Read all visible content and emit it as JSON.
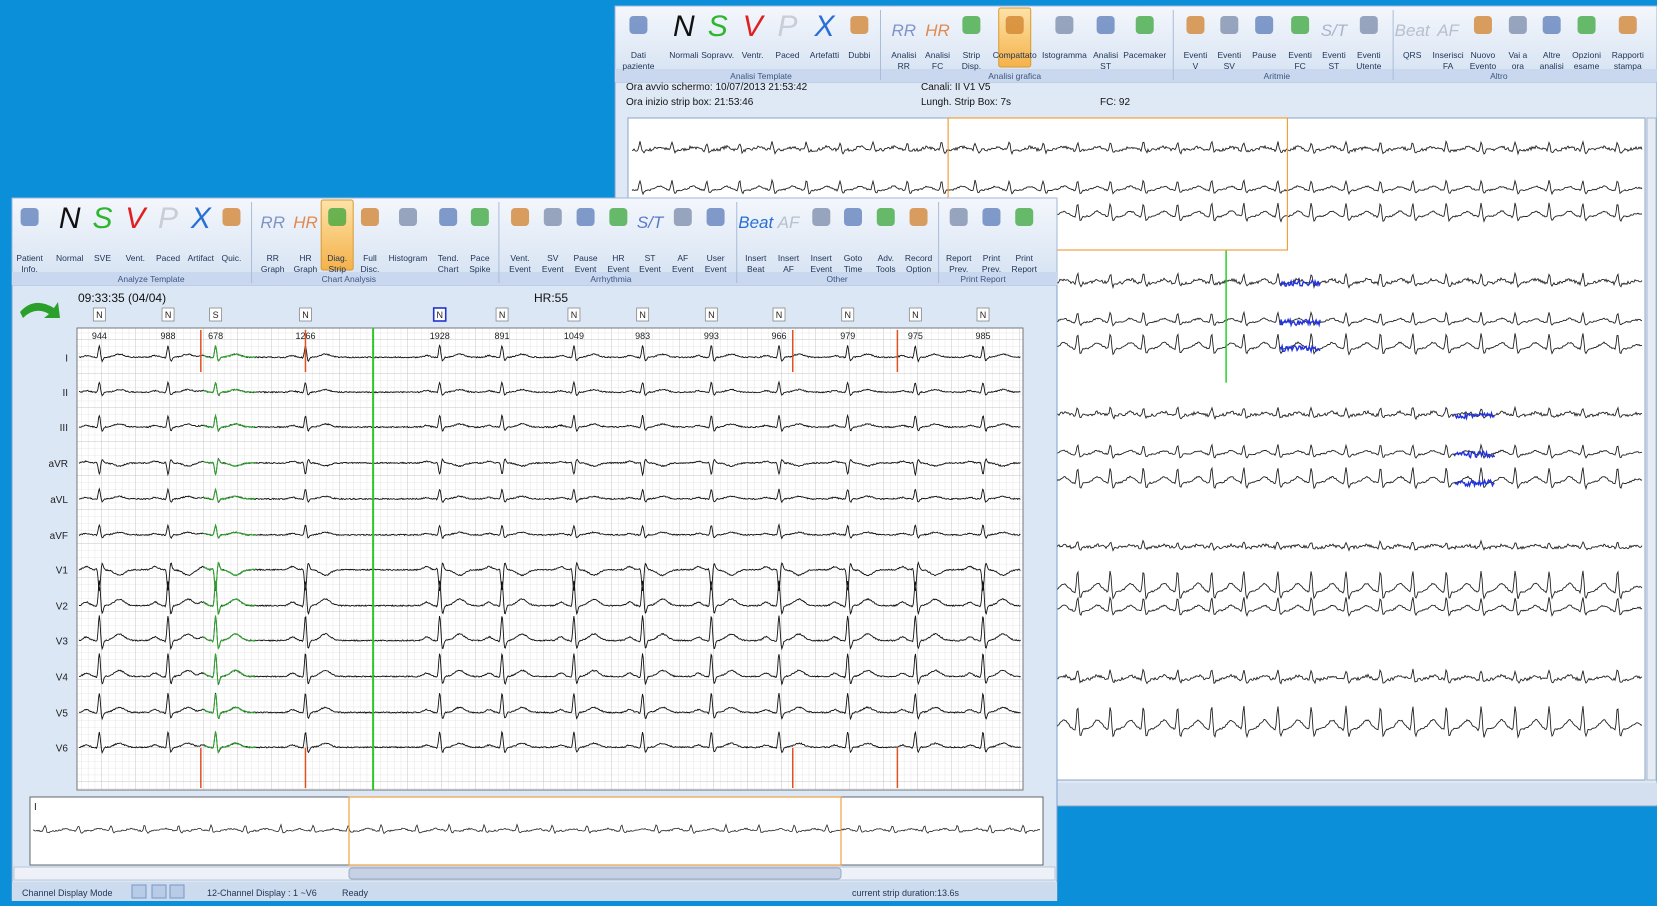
{
  "back_window": {
    "toolbar": {
      "buttons": [
        {
          "label": [
            "Dati",
            "paziente"
          ]
        },
        {
          "label": [
            "Normali"
          ],
          "icon": "N",
          "color": "#111111"
        },
        {
          "label": [
            "Sopravv."
          ],
          "icon": "S",
          "color": "#2fb52f"
        },
        {
          "label": [
            "Ventr."
          ],
          "icon": "V",
          "color": "#e02020"
        },
        {
          "label": [
            "Paced"
          ],
          "icon": "P",
          "color": "#c8cdd8"
        },
        {
          "label": [
            "Artefatti"
          ],
          "icon": "X",
          "color": "#2a6fd6"
        },
        {
          "label": [
            "Dubbi"
          ]
        },
        {
          "label": [
            "Analisi",
            "RR"
          ],
          "icon": "RR",
          "color": "#7f93c8"
        },
        {
          "label": [
            "Analisi",
            "FC"
          ],
          "icon": "HR",
          "color": "#e08a50"
        },
        {
          "label": [
            "Strip",
            "Disp."
          ]
        },
        {
          "label": [
            "Compattato"
          ],
          "active": true
        },
        {
          "label": [
            "Istogramma"
          ]
        },
        {
          "label": [
            "Analisi",
            "ST"
          ]
        },
        {
          "label": [
            "Pacemaker"
          ]
        },
        {
          "label": [
            "Eventi",
            "V"
          ]
        },
        {
          "label": [
            "Eventi",
            "SV"
          ]
        },
        {
          "label": [
            "Pause"
          ]
        },
        {
          "label": [
            "Eventi",
            "FC"
          ]
        },
        {
          "label": [
            "Eventi",
            "ST"
          ],
          "icon": "S/T",
          "color": "#a9b4cc"
        },
        {
          "label": [
            "Eventi",
            "Utente"
          ]
        },
        {
          "label": [
            "QRS"
          ],
          "icon": "Beat",
          "color": "#b8c0d0"
        },
        {
          "label": [
            "Inserisci",
            "FA"
          ],
          "icon": "AF",
          "color": "#b8c0d0"
        },
        {
          "label": [
            "Nuovo",
            "Evento"
          ]
        },
        {
          "label": [
            "Vai a",
            "ora"
          ]
        },
        {
          "label": [
            "Altre",
            "analisi"
          ]
        },
        {
          "label": [
            "Opzioni",
            "esame"
          ]
        },
        {
          "label": [
            "Rapporti",
            "stampa"
          ]
        }
      ],
      "groups": [
        "Analisi Template",
        "Analisi grafica",
        "Aritmie",
        "Altro"
      ]
    },
    "info": [
      "Ora avvio schermo: 10/07/2013 21:53:42",
      "Ora inizio strip box: 21:53:46",
      "Canali: II V1 V5",
      "Lungh. Strip Box: 7s",
      "FC: 92"
    ]
  },
  "front_window": {
    "toolbar": {
      "buttons": [
        {
          "label": [
            "Patient",
            "Info."
          ]
        },
        {
          "label": [
            "Normal"
          ],
          "icon": "N",
          "color": "#111111"
        },
        {
          "label": [
            "SVE"
          ],
          "icon": "S",
          "color": "#2fb52f"
        },
        {
          "label": [
            "Vent."
          ],
          "icon": "V",
          "color": "#e02020"
        },
        {
          "label": [
            "Paced"
          ],
          "icon": "P",
          "color": "#c8cdd8"
        },
        {
          "label": [
            "Artifact"
          ],
          "icon": "X",
          "color": "#2a6fd6"
        },
        {
          "label": [
            "Quic."
          ]
        },
        {
          "label": [
            "RR",
            "Graph"
          ],
          "icon": "RR",
          "color": "#7f93c8"
        },
        {
          "label": [
            "HR",
            "Graph"
          ],
          "icon": "HR",
          "color": "#e08a50"
        },
        {
          "label": [
            "Diag.",
            "Strip"
          ],
          "active": true
        },
        {
          "label": [
            "Full",
            "Disc."
          ]
        },
        {
          "label": [
            "Histogram"
          ]
        },
        {
          "label": [
            "Tend.",
            "Chart"
          ]
        },
        {
          "label": [
            "Pace",
            "Spike"
          ]
        },
        {
          "label": [
            "Vent.",
            "Event"
          ]
        },
        {
          "label": [
            "SV",
            "Event"
          ]
        },
        {
          "label": [
            "Pause",
            "Event"
          ]
        },
        {
          "label": [
            "HR",
            "Event"
          ]
        },
        {
          "label": [
            "ST",
            "Event"
          ],
          "icon": "S/T",
          "color": "#5a78c8"
        },
        {
          "label": [
            "AF",
            "Event"
          ]
        },
        {
          "label": [
            "User",
            "Event"
          ]
        },
        {
          "label": [
            "Insert",
            "Beat"
          ],
          "icon": "Beat",
          "color": "#2a6fd6"
        },
        {
          "label": [
            "Insert",
            "AF"
          ],
          "icon": "AF",
          "color": "#b8c0d0"
        },
        {
          "label": [
            "Insert",
            "Event"
          ]
        },
        {
          "label": [
            "Goto",
            "Time"
          ]
        },
        {
          "label": [
            "Adv.",
            "Tools"
          ]
        },
        {
          "label": [
            "Record",
            "Option"
          ]
        },
        {
          "label": [
            "Report",
            "Prev."
          ]
        },
        {
          "label": [
            "Print",
            "Prev."
          ]
        },
        {
          "label": [
            "Print",
            "Report"
          ]
        }
      ],
      "groups": [
        "Analyze Template",
        "Chart Analysis",
        "Arrhythmia",
        "Other",
        "Print Report"
      ]
    },
    "time": "09:33:35 (04/04)",
    "hr": "HR:55",
    "beats": [
      "N",
      "N",
      "S",
      "N",
      "N",
      "N",
      "N",
      "N",
      "N",
      "N",
      "N",
      "N",
      "N"
    ],
    "rr": [
      "944",
      "988",
      "678",
      "1266",
      "1928",
      "891",
      "1049",
      "983",
      "993",
      "966",
      "979",
      "975",
      "985"
    ],
    "leads": [
      "I",
      "II",
      "III",
      "aVR",
      "aVL",
      "aVF",
      "V1",
      "V2",
      "V3",
      "V4",
      "V5",
      "V6"
    ],
    "strip_lead": "I",
    "status": [
      "Channel Display Mode",
      "12-Channel Display : 1 ~V6",
      "Ready",
      "current strip duration:13.6s"
    ]
  }
}
